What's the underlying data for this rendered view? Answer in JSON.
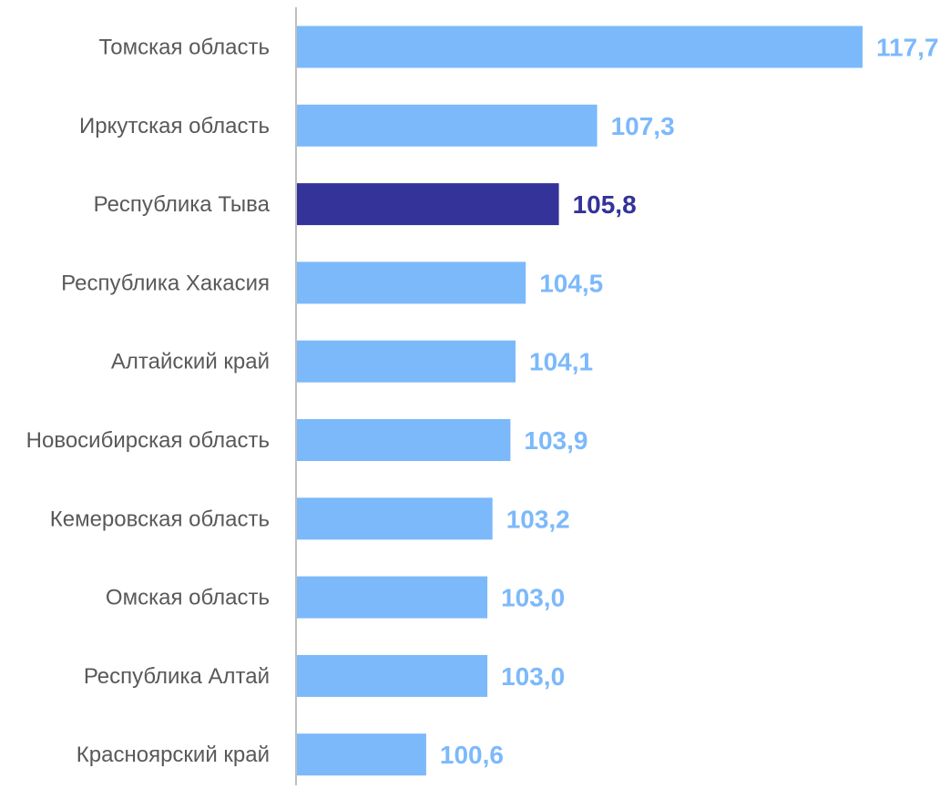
{
  "chart_data": {
    "type": "bar",
    "orientation": "horizontal",
    "categories": [
      "Томская область",
      "Иркутская область",
      "Республика Тыва",
      "Республика Хакасия",
      "Алтайский край",
      "Новосибирская область",
      "Кемеровская область",
      "Омская область",
      "Республика Алтай",
      "Красноярский край"
    ],
    "values": [
      117.7,
      107.3,
      105.8,
      104.5,
      104.1,
      103.9,
      103.2,
      103.0,
      103.0,
      100.6
    ],
    "value_labels": [
      "117,7",
      "107,3",
      "105,8",
      "104,5",
      "104,1",
      "103,9",
      "103,2",
      "103,0",
      "103,0",
      "100,6"
    ],
    "highlight_index": 2,
    "xlim": [
      95.5,
      117.7
    ],
    "grid": false,
    "legend": "none",
    "colors": {
      "bar": "#7cb9fb",
      "highlight": "#333399",
      "label_default": "#7cb9fb",
      "label_highlight": "#333399",
      "category_text": "#595959",
      "axis": "#bfbfbf"
    }
  }
}
